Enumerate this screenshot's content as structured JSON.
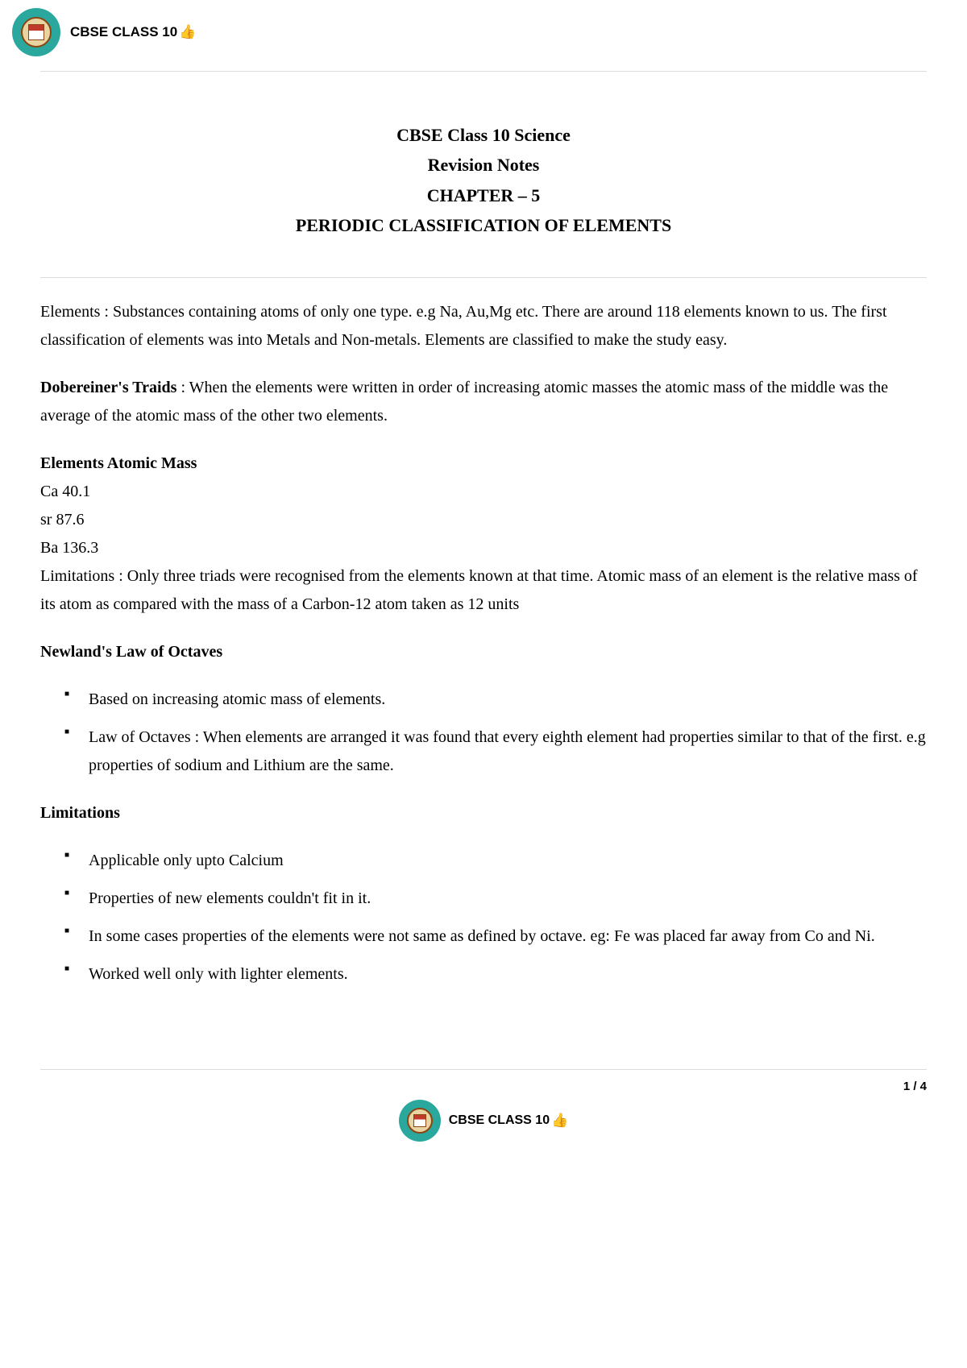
{
  "header": {
    "title": "CBSE CLASS 10",
    "thumbs": "👍"
  },
  "titleBlock": {
    "line1": "CBSE Class 10 Science",
    "line2": "Revision Notes",
    "line3": "CHAPTER – 5",
    "line4": "PERIODIC CLASSIFICATION OF ELEMENTS"
  },
  "para1": "Elements : Substances containing atoms of only one type. e.g Na, Au,Mg etc. There are around 118 elements known to us. The first classification of elements was into Metals and Non-metals. Elements are classified to make the study easy.",
  "para2": {
    "bold": "Dobereiner's Traids",
    "rest": " : When the elements were written in order of increasing atomic masses the atomic mass of the middle was the average of the atomic mass of the other two elements."
  },
  "atomicMass": {
    "heading": "Elements Atomic Mass",
    "rows": [
      "Ca 40.1",
      "sr 87.6",
      "Ba 136.3"
    ],
    "limitations": "Limitations : Only three triads were recognised from the  elements known at that time. Atomic mass of an element is the relative mass of its atom as compared with the mass of a Carbon-12 atom taken as 12 units"
  },
  "newlands": {
    "heading": "Newland's Law of Octaves",
    "items": [
      "Based on increasing atomic mass of elements.",
      "Law of Octaves : When elements are arranged it was found that every eighth element had properties similar to that of the first. e.g properties of sodium and Lithium are the same."
    ]
  },
  "limitations": {
    "heading": "Limitations",
    "items": [
      "Applicable only upto Calcium",
      "Properties of new elements couldn't fit in it.",
      "In some cases properties of the elements were not same as defined by octave. eg: Fe was placed far away from Co and Ni.",
      "Worked well only with lighter elements."
    ]
  },
  "footer": {
    "page": "1 / 4",
    "title": "CBSE CLASS 10",
    "thumbs": "👍"
  }
}
